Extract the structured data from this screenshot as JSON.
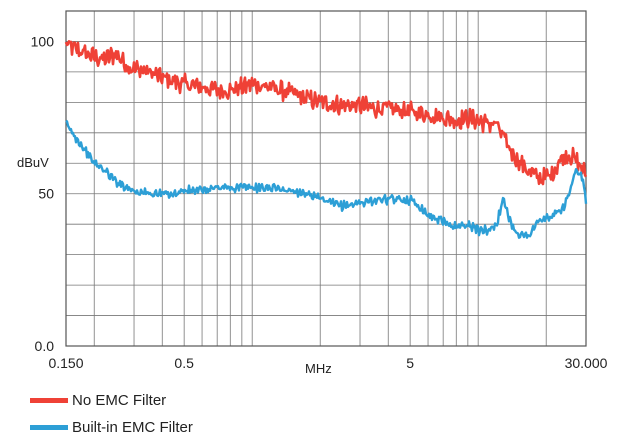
{
  "chart_data": {
    "type": "line",
    "title": "",
    "xlabel": "MHz",
    "ylabel": "dBuV",
    "x_scale": "log",
    "xlim": [
      0.15,
      30
    ],
    "ylim": [
      0,
      110
    ],
    "grid": true,
    "legend_position": "bottom-left",
    "x_tick_labels": [
      "0.150",
      "0.5",
      "5",
      "30.000"
    ],
    "x_tick_values": [
      0.15,
      0.5,
      5,
      30
    ],
    "y_tick_labels": [
      "0.0",
      "50",
      "100"
    ],
    "y_tick_values": [
      0,
      50,
      100
    ],
    "series": [
      {
        "name": "No EMC Filter",
        "color": "#ef4136",
        "x": [
          0.15,
          0.17,
          0.2,
          0.22,
          0.25,
          0.28,
          0.3,
          0.35,
          0.4,
          0.45,
          0.5,
          0.6,
          0.7,
          0.8,
          0.9,
          1.0,
          1.2,
          1.5,
          1.8,
          2.0,
          2.5,
          3.0,
          3.5,
          4.0,
          5.0,
          6.0,
          7.0,
          8.0,
          9.0,
          10.0,
          11.0,
          12.0,
          13.0,
          14.0,
          15.0,
          17.0,
          19.0,
          21.0,
          23.0,
          25.0,
          27.0,
          29.0,
          30.0
        ],
        "y": [
          99,
          97,
          95,
          94,
          96,
          92,
          91,
          90,
          88,
          87,
          86,
          85,
          84,
          84,
          85,
          86,
          85,
          83,
          81,
          80,
          79,
          79,
          78,
          78,
          77,
          76,
          75,
          74,
          75,
          74,
          73,
          73,
          68,
          64,
          61,
          57,
          55,
          56,
          61,
          63,
          61,
          58,
          56
        ],
        "noise": 2.5
      },
      {
        "name": "Built-in EMC Filter",
        "color": "#2d9fd6",
        "x": [
          0.15,
          0.16,
          0.18,
          0.2,
          0.22,
          0.25,
          0.3,
          0.35,
          0.4,
          0.45,
          0.5,
          0.6,
          0.7,
          0.8,
          1.0,
          1.2,
          1.5,
          1.8,
          2.0,
          2.2,
          2.5,
          3.0,
          3.5,
          4.0,
          4.5,
          5.0,
          5.5,
          6.0,
          7.0,
          8.0,
          9.0,
          10.0,
          11.0,
          12.0,
          13.0,
          14.0,
          15.0,
          16.0,
          17.0,
          18.0,
          20.0,
          22.0,
          24.0,
          25.0,
          27.0,
          29.0,
          30.0
        ],
        "y": [
          73,
          70,
          65,
          60,
          58,
          54,
          51,
          50,
          50,
          50,
          51,
          51,
          52,
          52,
          52,
          52,
          51,
          50,
          48,
          47,
          46,
          47,
          48,
          48,
          48,
          48,
          46,
          43,
          41,
          39,
          40,
          38,
          38,
          40,
          48,
          40,
          37,
          36,
          37,
          40,
          42,
          43,
          46,
          49,
          57,
          55,
          47
        ],
        "noise": 1.2
      }
    ]
  }
}
